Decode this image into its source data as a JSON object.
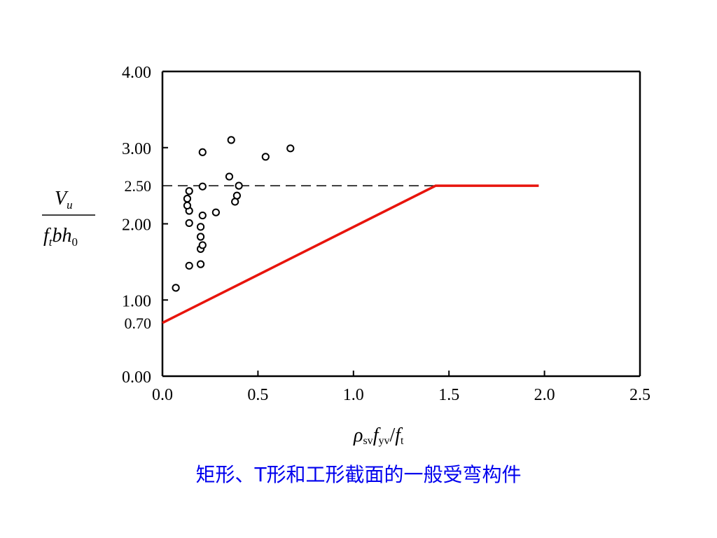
{
  "caption": "矩形、T形和工形截面的一般受弯构件",
  "colors": {
    "limit_line": "#e8140c",
    "caption": "#0000ee",
    "axes": "#000000"
  },
  "chart_data": {
    "type": "scatter",
    "title": "",
    "xlabel": "ρsvfyv/ft",
    "ylabel": "Vu / (ft b h0)",
    "xlim": [
      0,
      2.5
    ],
    "ylim": [
      0,
      4.0
    ],
    "x_ticks": [
      "0.0",
      "0.5",
      "1.0",
      "1.5",
      "2.0",
      "2.5"
    ],
    "x_tick_values": [
      0,
      0.5,
      1.0,
      1.5,
      2.0,
      2.5
    ],
    "y_ticks": [
      "0.00",
      "1.00",
      "2.00",
      "3.00",
      "4.00"
    ],
    "y_tick_values": [
      0,
      1.0,
      2.0,
      3.0,
      4.0
    ],
    "grid": false,
    "annotations": [
      {
        "label": "2.50",
        "y": 2.5
      },
      {
        "label": "0.70",
        "y": 0.7
      }
    ],
    "reference_line": {
      "name": "",
      "style": "dashed",
      "y": 2.5,
      "x": [
        0,
        1.43
      ]
    },
    "series": [
      {
        "type": "scatter",
        "marker": "open-circle",
        "x": [
          0.07,
          0.14,
          0.14,
          0.14,
          0.13,
          0.13,
          0.14,
          0.2,
          0.2,
          0.21,
          0.2,
          0.2,
          0.21,
          0.21,
          0.21,
          0.28,
          0.35,
          0.36,
          0.39,
          0.38,
          0.4,
          0.54,
          0.67
        ],
        "y": [
          1.16,
          1.45,
          2.01,
          2.17,
          2.24,
          2.33,
          2.43,
          1.47,
          1.67,
          1.72,
          1.83,
          1.96,
          2.11,
          2.49,
          2.94,
          2.15,
          2.62,
          3.1,
          2.37,
          2.29,
          2.5,
          2.88,
          2.99
        ]
      },
      {
        "type": "line",
        "x": [
          0,
          1.43,
          1.97
        ],
        "y": [
          0.7,
          2.5,
          2.5
        ]
      }
    ]
  }
}
